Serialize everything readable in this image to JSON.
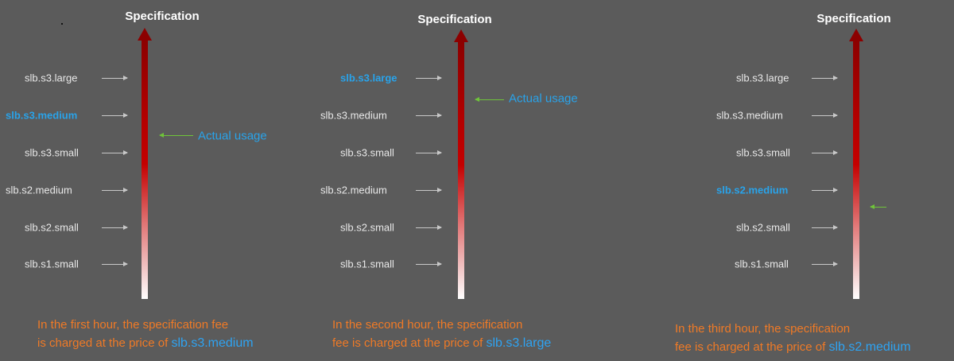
{
  "panels": [
    {
      "title": "Specification",
      "specs": [
        "slb.s3.large",
        "slb.s3.medium",
        "slb.s3.small",
        "slb.s2.medium",
        "slb.s2.small",
        "slb.s1.small"
      ],
      "highlighted": "slb.s3.medium",
      "usage_label": "Actual usage",
      "caption_line1": "In the first hour, the specification fee",
      "caption_line2": "is charged at the price of",
      "caption_price": "slb.s3.medium"
    },
    {
      "title": "Specification",
      "specs": [
        "slb.s3.large",
        "slb.s3.medium",
        "slb.s3.small",
        "slb.s2.medium",
        "slb.s2.small",
        "slb.s1.small"
      ],
      "highlighted": "slb.s3.large",
      "usage_label": "Actual usage",
      "caption_line1": "In the second hour, the specification",
      "caption_line2": "fee is charged at the price of",
      "caption_price": "slb.s3.large"
    },
    {
      "title": "Specification",
      "specs": [
        "slb.s3.large",
        "slb.s3.medium",
        "slb.s3.small",
        "slb.s2.medium",
        "slb.s2.small",
        "slb.s1.small"
      ],
      "highlighted": "slb.s2.medium",
      "usage_label": "",
      "caption_line1": "In the third hour, the specification",
      "caption_line2": "fee is charged at the price of",
      "caption_price": "slb.s2.medium"
    }
  ],
  "colors": {
    "background": "#5b5b5b",
    "bar_top": "#8c0000",
    "highlight": "#29a3ea",
    "usage_arrow": "#6fc43a",
    "caption": "#f07a26"
  }
}
